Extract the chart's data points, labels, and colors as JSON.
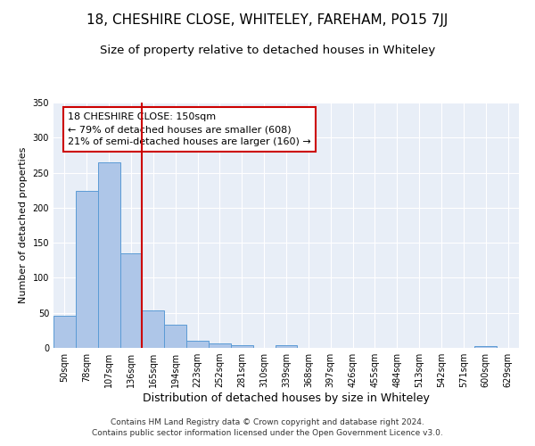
{
  "title": "18, CHESHIRE CLOSE, WHITELEY, FAREHAM, PO15 7JJ",
  "subtitle": "Size of property relative to detached houses in Whiteley",
  "xlabel": "Distribution of detached houses by size in Whiteley",
  "ylabel": "Number of detached properties",
  "bar_labels": [
    "50sqm",
    "78sqm",
    "107sqm",
    "136sqm",
    "165sqm",
    "194sqm",
    "223sqm",
    "252sqm",
    "281sqm",
    "310sqm",
    "339sqm",
    "368sqm",
    "397sqm",
    "426sqm",
    "455sqm",
    "484sqm",
    "513sqm",
    "542sqm",
    "571sqm",
    "600sqm",
    "629sqm"
  ],
  "bar_values": [
    46,
    224,
    265,
    135,
    54,
    33,
    10,
    6,
    4,
    0,
    4,
    0,
    0,
    0,
    0,
    0,
    0,
    0,
    0,
    3,
    0
  ],
  "bar_color": "#aec6e8",
  "bar_edge_color": "#5b9bd5",
  "vline_color": "#cc0000",
  "annotation_box_text": "18 CHESHIRE CLOSE: 150sqm\n← 79% of detached houses are smaller (608)\n21% of semi-detached houses are larger (160) →",
  "ylim": [
    0,
    350
  ],
  "yticks": [
    0,
    50,
    100,
    150,
    200,
    250,
    300,
    350
  ],
  "background_color": "#e8eef7",
  "grid_color": "#ffffff",
  "footer_text": "Contains HM Land Registry data © Crown copyright and database right 2024.\nContains public sector information licensed under the Open Government Licence v3.0.",
  "title_fontsize": 11,
  "subtitle_fontsize": 9.5,
  "xlabel_fontsize": 9,
  "ylabel_fontsize": 8,
  "annotation_fontsize": 8,
  "tick_fontsize": 7,
  "footer_fontsize": 6.5
}
